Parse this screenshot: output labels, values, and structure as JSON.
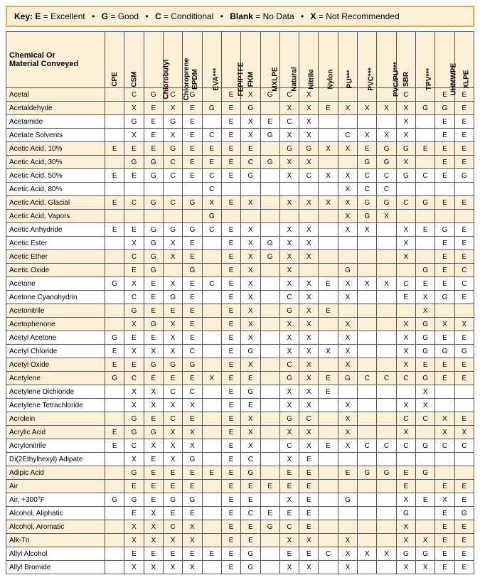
{
  "key": {
    "label": "Key:",
    "items": [
      {
        "code": "E",
        "text": "Excellent"
      },
      {
        "code": "G",
        "text": "Good"
      },
      {
        "code": "C",
        "text": "Conditional"
      },
      {
        "code": "Blank",
        "text": "No Data"
      },
      {
        "code": "X",
        "text": "Not Recommended"
      }
    ]
  },
  "cornerLabel": "Chemical Or\nMaterial Conveyed",
  "columns": [
    "CPE",
    "CSM",
    "Chlorobutyl",
    "Chloroprene",
    "EPDM",
    "EVA***",
    "FEP/PTFE",
    "FKM",
    "MXLPE",
    "Natural",
    "Nitrile",
    "Nylon",
    "PU***",
    "PVC***",
    "PVC/PU***",
    "SBR",
    "TPV***",
    "UHMWPE",
    "XLPE"
  ],
  "styles": {
    "colors": {
      "stripe": "#fdf0d9",
      "plain": "#ffffff",
      "border": "#555555",
      "keyBorder": "#e8a74a",
      "text": "#000000"
    },
    "font": {
      "family": "Arial",
      "bodySize": 11,
      "cellSize": 10,
      "headerRotateDeg": -90
    },
    "colWidths": {
      "rowHeader": 130
    }
  },
  "rows": [
    {
      "name": "Acetal",
      "v": [
        "",
        "C",
        "G",
        "C",
        "G",
        "",
        "E",
        "X",
        "G",
        "C",
        "X",
        "",
        "",
        "",
        "",
        "C",
        "",
        "E",
        "E"
      ]
    },
    {
      "name": "Acetaldehyde",
      "v": [
        "",
        "X",
        "E",
        "X",
        "E",
        "G",
        "E",
        "G",
        "",
        "X",
        "X",
        "E",
        "X",
        "X",
        "X",
        "X",
        "G",
        "G",
        "E"
      ]
    },
    {
      "name": "Acetamide",
      "v": [
        "",
        "G",
        "E",
        "G",
        "E",
        "",
        "E",
        "X",
        "E",
        "C",
        "X",
        "",
        "",
        "",
        "",
        "X",
        "",
        "E",
        "E"
      ]
    },
    {
      "name": "Acetate Solvents",
      "v": [
        "",
        "X",
        "E",
        "X",
        "E",
        "C",
        "E",
        "X",
        "G",
        "X",
        "X",
        "",
        "C",
        "X",
        "X",
        "X",
        "",
        "E",
        "E"
      ]
    },
    {
      "name": "Acetic Acid, 10%",
      "v": [
        "E",
        "E",
        "E",
        "G",
        "E",
        "E",
        "E",
        "E",
        "",
        "G",
        "G",
        "X",
        "X",
        "E",
        "G",
        "G",
        "E",
        "E",
        "E"
      ]
    },
    {
      "name": "Acetic Acid, 30%",
      "v": [
        "",
        "G",
        "G",
        "C",
        "E",
        "E",
        "E",
        "C",
        "G",
        "X",
        "X",
        "",
        "",
        "G",
        "G",
        "X",
        "",
        "E",
        "E"
      ]
    },
    {
      "name": "Acetic Acid, 50%",
      "v": [
        "E",
        "E",
        "G",
        "C",
        "E",
        "C",
        "E",
        "G",
        "",
        "X",
        "C",
        "X",
        "X",
        "C",
        "C",
        "G",
        "C",
        "E",
        "G"
      ]
    },
    {
      "name": "Acetic Acid, 80%",
      "v": [
        "",
        "",
        "",
        "",
        "",
        "C",
        "",
        "",
        "",
        "",
        "",
        "",
        "X",
        "C",
        "C",
        "",
        "",
        "",
        ""
      ]
    },
    {
      "name": "Acetic Acid, Glacial",
      "v": [
        "E",
        "C",
        "G",
        "C",
        "G",
        "X",
        "E",
        "X",
        "",
        "X",
        "X",
        "X",
        "X",
        "G",
        "G",
        "C",
        "G",
        "E",
        "E"
      ]
    },
    {
      "name": "Acetic Acid, Vapors",
      "v": [
        "",
        "",
        "",
        "",
        "",
        "G",
        "",
        "",
        "",
        "",
        "",
        "",
        "X",
        "G",
        "X",
        "",
        "",
        "",
        ""
      ]
    },
    {
      "name": "Acetic Anhydride",
      "v": [
        "E",
        "E",
        "G",
        "G",
        "G",
        "C",
        "E",
        "X",
        "",
        "X",
        "X",
        "",
        "X",
        "X",
        "",
        "X",
        "E",
        "G",
        "E"
      ]
    },
    {
      "name": "Acetic Ester",
      "v": [
        "",
        "X",
        "G",
        "X",
        "E",
        "",
        "E",
        "X",
        "G",
        "X",
        "X",
        "",
        "",
        "",
        "",
        "X",
        "",
        "E",
        "E"
      ]
    },
    {
      "name": "Acetic Ether",
      "v": [
        "",
        "C",
        "G",
        "X",
        "E",
        "",
        "E",
        "X",
        "G",
        "X",
        "X",
        "",
        "",
        "",
        "",
        "X",
        "",
        "E",
        "E"
      ]
    },
    {
      "name": "Acetic Oxide",
      "v": [
        "",
        "E",
        "G",
        "",
        "G",
        "",
        "E",
        "X",
        "",
        "X",
        "",
        "",
        "G",
        "",
        "",
        "",
        "G",
        "E",
        "C"
      ]
    },
    {
      "name": "Acetone",
      "v": [
        "G",
        "X",
        "E",
        "X",
        "E",
        "C",
        "E",
        "X",
        "",
        "X",
        "X",
        "E",
        "X",
        "X",
        "X",
        "C",
        "E",
        "E",
        "C"
      ]
    },
    {
      "name": "Acetone Cyanohydrin",
      "v": [
        "",
        "C",
        "E",
        "G",
        "E",
        "",
        "E",
        "X",
        "",
        "C",
        "X",
        "",
        "X",
        "",
        "",
        "E",
        "X",
        "G",
        "E"
      ]
    },
    {
      "name": "Acetonitrile",
      "v": [
        "",
        "G",
        "E",
        "E",
        "E",
        "",
        "E",
        "X",
        "",
        "G",
        "X",
        "E",
        "",
        "",
        "",
        "",
        "X",
        "",
        ""
      ]
    },
    {
      "name": "Acetophenone",
      "v": [
        "",
        "X",
        "G",
        "X",
        "E",
        "",
        "E",
        "X",
        "",
        "X",
        "X",
        "",
        "X",
        "",
        "",
        "X",
        "G",
        "X",
        "X"
      ]
    },
    {
      "name": "Acetyl Acetone",
      "v": [
        "G",
        "E",
        "E",
        "X",
        "E",
        "",
        "E",
        "X",
        "",
        "X",
        "X",
        "",
        "X",
        "",
        "",
        "X",
        "G",
        "E",
        "E"
      ]
    },
    {
      "name": "Acetyl Chloride",
      "v": [
        "E",
        "X",
        "X",
        "X",
        "C",
        "",
        "E",
        "G",
        "",
        "X",
        "X",
        "X",
        "X",
        "",
        "",
        "X",
        "G",
        "G",
        "G"
      ]
    },
    {
      "name": "Acetyl Oxide",
      "v": [
        "E",
        "E",
        "G",
        "G",
        "G",
        "",
        "E",
        "X",
        "",
        "C",
        "X",
        "",
        "X",
        "",
        "",
        "X",
        "E",
        "E",
        "E"
      ]
    },
    {
      "name": "Acetylene",
      "v": [
        "G",
        "C",
        "E",
        "E",
        "E",
        "X",
        "E",
        "E",
        "",
        "G",
        "X",
        "E",
        "G",
        "C",
        "C",
        "C",
        "G",
        "E",
        "E"
      ]
    },
    {
      "name": "Acetylene Dichloride",
      "v": [
        "",
        "X",
        "X",
        "C",
        "C",
        "",
        "E",
        "G",
        "",
        "X",
        "X",
        "E",
        "",
        "",
        "",
        "",
        "X",
        "",
        ""
      ]
    },
    {
      "name": "Acetylene Tetrachloride",
      "v": [
        "",
        "X",
        "X",
        "X",
        "X",
        "",
        "E",
        "E",
        "",
        "X",
        "X",
        "",
        "X",
        "",
        "",
        "X",
        "X",
        "",
        ""
      ]
    },
    {
      "name": "Acrolein",
      "v": [
        "",
        "G",
        "E",
        "C",
        "E",
        "",
        "E",
        "X",
        "",
        "G",
        "C",
        "",
        "X",
        "",
        "",
        "C",
        "C",
        "X",
        "E"
      ]
    },
    {
      "name": "Acrylic Acid",
      "v": [
        "E",
        "G",
        "G",
        "X",
        "X",
        "",
        "E",
        "X",
        "",
        "X",
        "X",
        "",
        "X",
        "",
        "",
        "X",
        "",
        "X",
        "X"
      ]
    },
    {
      "name": "Acrylonitrile",
      "v": [
        "E",
        "C",
        "X",
        "X",
        "X",
        "",
        "E",
        "X",
        "",
        "C",
        "X",
        "E",
        "X",
        "C",
        "C",
        "C",
        "G",
        "C",
        "C"
      ]
    },
    {
      "name": "Di(2Ethylhexyl) Adipate",
      "v": [
        "",
        "X",
        "E",
        "X",
        "G",
        "",
        "E",
        "C",
        "",
        "X",
        "E",
        "",
        "",
        "",
        "",
        "",
        "",
        "",
        ""
      ]
    },
    {
      "name": "Adipic Acid",
      "v": [
        "",
        "G",
        "E",
        "E",
        "E",
        "E",
        "E",
        "G",
        "",
        "E",
        "E",
        "",
        "E",
        "G",
        "G",
        "E",
        "G",
        "",
        ""
      ]
    },
    {
      "name": "Air",
      "v": [
        "",
        "E",
        "E",
        "E",
        "E",
        "",
        "E",
        "E",
        "E",
        "E",
        "E",
        "",
        "",
        "",
        "",
        "E",
        "",
        "E",
        "E"
      ]
    },
    {
      "name": "Air, +300°F",
      "v": [
        "G",
        "G",
        "E",
        "G",
        "G",
        "",
        "E",
        "E",
        "",
        "X",
        "E",
        "",
        "G",
        "",
        "",
        "X",
        "E",
        "X",
        "E"
      ]
    },
    {
      "name": "Alcohol, Aliphatic",
      "v": [
        "",
        "E",
        "X",
        "E",
        "E",
        "",
        "E",
        "C",
        "E",
        "E",
        "E",
        "",
        "",
        "",
        "",
        "G",
        "",
        "E",
        "G"
      ]
    },
    {
      "name": "Alcohol, Aromatic",
      "v": [
        "",
        "X",
        "X",
        "C",
        "X",
        "",
        "E",
        "E",
        "G",
        "C",
        "E",
        "",
        "",
        "",
        "",
        "X",
        "",
        "E",
        "E"
      ]
    },
    {
      "name": "Alk-Tri",
      "v": [
        "",
        "X",
        "X",
        "X",
        "X",
        "",
        "E",
        "E",
        "",
        "X",
        "X",
        "",
        "X",
        "",
        "",
        "X",
        "X",
        "E",
        "E"
      ]
    },
    {
      "name": "Allyl Alcohol",
      "v": [
        "",
        "E",
        "E",
        "E",
        "E",
        "E",
        "E",
        "G",
        "",
        "E",
        "E",
        "C",
        "X",
        "X",
        "X",
        "G",
        "G",
        "E",
        "E"
      ]
    },
    {
      "name": "Allyl Bromide",
      "v": [
        "",
        "X",
        "X",
        "X",
        "X",
        "",
        "E",
        "G",
        "",
        "X",
        "X",
        "",
        "X",
        "",
        "",
        "X",
        "X",
        "E",
        "E"
      ]
    }
  ]
}
